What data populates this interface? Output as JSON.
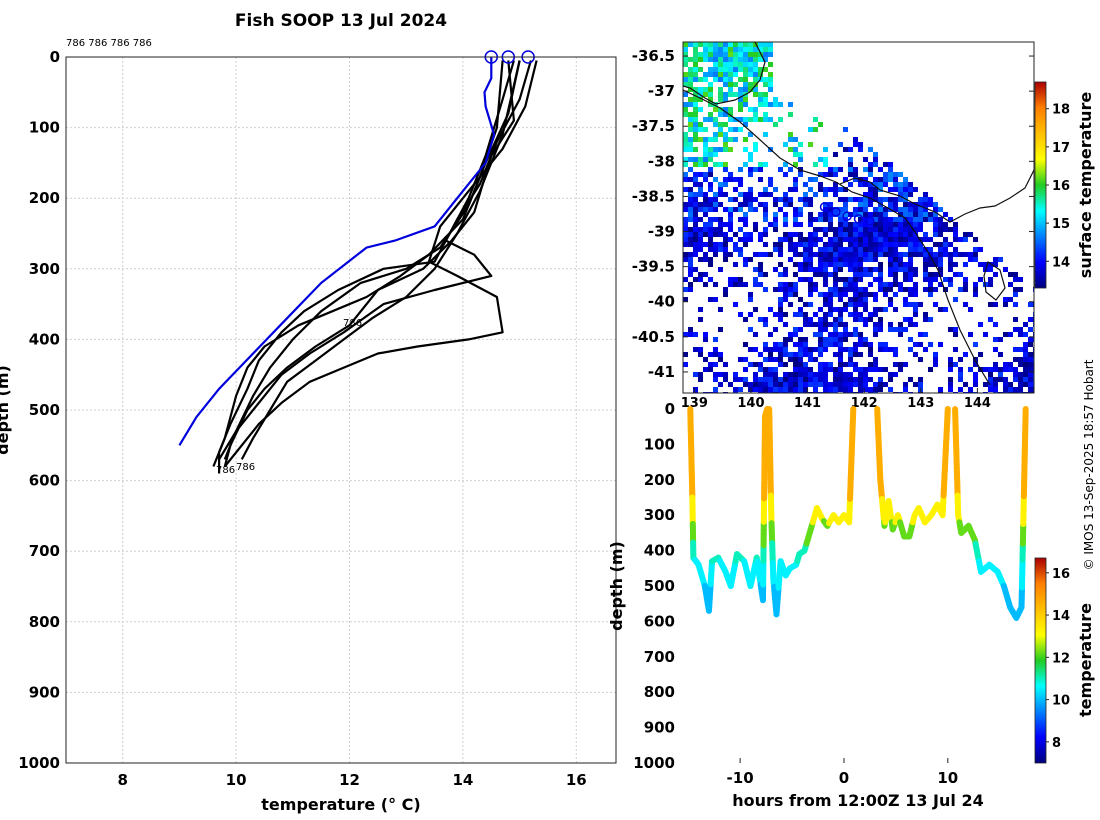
{
  "figure": {
    "title": "Fish SOOP 13 Jul 2024",
    "credit": "© IMOS 13-Sep-2025 18:57 Hobart"
  },
  "chart_data": [
    {
      "id": "profiles",
      "type": "line",
      "title": "Fish SOOP 13 Jul 2024",
      "xlabel": "temperature (° C)",
      "ylabel": "depth (m)",
      "xlim": [
        7,
        16.7
      ],
      "ylim": [
        0,
        1000
      ],
      "y_reversed": true,
      "xticks": [
        8,
        10,
        12,
        14,
        16
      ],
      "yticks": [
        0,
        100,
        200,
        300,
        400,
        500,
        600,
        700,
        800,
        900,
        1000
      ],
      "grid": true,
      "platform_labels": [
        "786 786 786 786",
        "786",
        "786",
        "786"
      ],
      "climatology": {
        "color": "#0000dd",
        "points": [
          [
            14.5,
            0
          ],
          [
            14.5,
            30
          ],
          [
            14.38,
            50
          ],
          [
            14.4,
            70
          ],
          [
            14.55,
            110
          ],
          [
            14.4,
            150
          ],
          [
            14.0,
            190
          ],
          [
            13.5,
            240
          ],
          [
            12.8,
            260
          ],
          [
            12.3,
            270
          ],
          [
            11.5,
            320
          ],
          [
            10.9,
            370
          ],
          [
            10.3,
            420
          ],
          [
            9.7,
            470
          ],
          [
            9.3,
            510
          ],
          [
            9.0,
            550
          ]
        ]
      },
      "surface_markers": [
        14.5,
        14.8,
        15.15
      ],
      "series": [
        {
          "name": "p1",
          "values": [
            [
              15.2,
              5
            ],
            [
              15.0,
              60
            ],
            [
              14.6,
              120
            ],
            [
              14.3,
              180
            ],
            [
              13.9,
              230
            ],
            [
              13.5,
              290
            ],
            [
              12.6,
              300
            ],
            [
              11.8,
              330
            ],
            [
              11.2,
              360
            ],
            [
              10.8,
              390
            ],
            [
              10.4,
              430
            ],
            [
              10.2,
              470
            ],
            [
              9.9,
              520
            ],
            [
              9.7,
              560
            ],
            [
              9.7,
              590
            ]
          ]
        },
        {
          "name": "p2",
          "values": [
            [
              15.0,
              5
            ],
            [
              14.8,
              80
            ],
            [
              14.4,
              150
            ],
            [
              14.1,
              210
            ],
            [
              13.6,
              270
            ],
            [
              13.0,
              300
            ],
            [
              12.2,
              320
            ],
            [
              11.5,
              360
            ],
            [
              11.0,
              400
            ],
            [
              10.6,
              440
            ],
            [
              10.3,
              480
            ],
            [
              10.0,
              530
            ],
            [
              9.8,
              570
            ]
          ]
        },
        {
          "name": "p3",
          "values": [
            [
              14.8,
              5
            ],
            [
              14.9,
              90
            ],
            [
              14.5,
              140
            ],
            [
              14.2,
              220
            ],
            [
              13.8,
              260
            ],
            [
              13.3,
              300
            ],
            [
              12.5,
              330
            ],
            [
              12.0,
              380
            ],
            [
              11.4,
              410
            ],
            [
              10.9,
              440
            ],
            [
              10.5,
              470
            ],
            [
              10.2,
              500
            ],
            [
              9.9,
              550
            ],
            [
              9.8,
              580
            ]
          ]
        },
        {
          "name": "p4",
          "values": [
            [
              15.3,
              5
            ],
            [
              15.1,
              70
            ],
            [
              14.7,
              130
            ],
            [
              14.0,
              200
            ],
            [
              13.6,
              240
            ],
            [
              13.4,
              290
            ],
            [
              13.9,
              310
            ],
            [
              14.6,
              340
            ],
            [
              14.7,
              390
            ],
            [
              14.1,
              400
            ],
            [
              13.2,
              410
            ],
            [
              12.5,
              420
            ],
            [
              11.9,
              440
            ],
            [
              11.3,
              460
            ],
            [
              10.8,
              490
            ],
            [
              10.4,
              520
            ],
            [
              10.1,
              550
            ],
            [
              9.8,
              580
            ]
          ]
        },
        {
          "name": "p5",
          "values": [
            [
              14.7,
              5
            ],
            [
              14.6,
              100
            ],
            [
              14.3,
              170
            ],
            [
              14.0,
              230
            ],
            [
              13.4,
              280
            ],
            [
              12.9,
              310
            ],
            [
              12.3,
              340
            ],
            [
              11.7,
              360
            ],
            [
              11.1,
              380
            ],
            [
              10.5,
              410
            ],
            [
              10.2,
              440
            ],
            [
              10.0,
              480
            ],
            [
              9.8,
              540
            ],
            [
              9.6,
              580
            ]
          ]
        },
        {
          "name": "p6",
          "values": [
            [
              15.0,
              5
            ],
            [
              14.7,
              110
            ],
            [
              14.3,
              190
            ],
            [
              13.9,
              250
            ],
            [
              13.5,
              300
            ],
            [
              13.0,
              340
            ],
            [
              12.4,
              370
            ],
            [
              11.9,
              400
            ],
            [
              11.4,
              430
            ],
            [
              10.9,
              460
            ],
            [
              10.6,
              500
            ],
            [
              10.3,
              540
            ],
            [
              10.1,
              570
            ]
          ]
        },
        {
          "name": "p7",
          "values": [
            [
              14.9,
              5
            ],
            [
              14.7,
              60
            ],
            [
              14.4,
              140
            ],
            [
              14.1,
              200
            ],
            [
              13.7,
              260
            ],
            [
              14.2,
              280
            ],
            [
              14.5,
              310
            ],
            [
              13.5,
              330
            ],
            [
              12.6,
              350
            ],
            [
              11.9,
              390
            ],
            [
              11.3,
              420
            ],
            [
              10.8,
              450
            ],
            [
              10.4,
              490
            ],
            [
              10.0,
              530
            ],
            [
              9.7,
              570
            ]
          ]
        }
      ]
    },
    {
      "id": "map",
      "type": "heatmap",
      "xlabel": "",
      "ylabel": "",
      "xlim": [
        138.8,
        145.0
      ],
      "ylim": [
        -41.3,
        -36.3
      ],
      "xticks": [
        139,
        140,
        141,
        142,
        143,
        144
      ],
      "yticks": [
        -36.5,
        -37,
        -37.5,
        -38,
        -38.5,
        -39,
        -39.5,
        -40,
        -40.5,
        -41
      ],
      "colorbar_label": "surface temperature",
      "colorbar_range": [
        13.3,
        18.7
      ],
      "colorbar_ticks": [
        14,
        15,
        16,
        17,
        18
      ],
      "track_color": "#0000dd",
      "track_points": [
        [
          141.3,
          -38.65
        ],
        [
          141.5,
          -38.72
        ],
        [
          141.7,
          -38.78
        ],
        [
          141.9,
          -38.82
        ],
        [
          142.1,
          -38.85
        ]
      ]
    },
    {
      "id": "section",
      "type": "scatter",
      "xlabel": "hours from 12:00Z 13 Jul 24",
      "ylabel": "depth (m)",
      "xlim": [
        -15.5,
        18.3
      ],
      "ylim": [
        0,
        1000
      ],
      "y_reversed": true,
      "xticks": [
        -10,
        0,
        10
      ],
      "yticks": [
        0,
        100,
        200,
        300,
        400,
        500,
        600,
        700,
        800,
        900,
        1000
      ],
      "colorbar_label": "temperature",
      "colorbar_range": [
        7,
        16.7
      ],
      "colorbar_ticks": [
        8,
        10,
        12,
        14,
        16
      ],
      "segments": [
        [
          [
            -14.8,
            0
          ],
          [
            -14.6,
            250
          ],
          [
            -14.5,
            420
          ],
          [
            -14,
            440
          ],
          [
            -13.4,
            500
          ],
          [
            -13,
            570
          ],
          [
            -12.7,
            430
          ],
          [
            -12.1,
            420
          ],
          [
            -11.4,
            460
          ],
          [
            -10.9,
            500
          ],
          [
            -10.3,
            410
          ],
          [
            -9.6,
            430
          ],
          [
            -9.0,
            500
          ],
          [
            -8.4,
            420
          ],
          [
            -7.8,
            540
          ],
          [
            -7.6,
            20
          ],
          [
            -7.4,
            0
          ]
        ],
        [
          [
            -7.2,
            0
          ],
          [
            -7.0,
            300
          ],
          [
            -6.8,
            480
          ],
          [
            -6.5,
            580
          ],
          [
            -6.1,
            430
          ],
          [
            -5.6,
            470
          ],
          [
            -5.2,
            450
          ],
          [
            -4.6,
            440
          ],
          [
            -4.3,
            410
          ],
          [
            -3.8,
            400
          ],
          [
            -3.2,
            340
          ],
          [
            -2.6,
            280
          ],
          [
            -2.1,
            310
          ],
          [
            -1.6,
            330
          ],
          [
            -1.0,
            300
          ],
          [
            -0.5,
            320
          ],
          [
            0,
            300
          ],
          [
            0.5,
            320
          ],
          [
            0.9,
            0
          ]
        ],
        [
          [
            3.2,
            0
          ],
          [
            3.5,
            200
          ],
          [
            3.9,
            330
          ],
          [
            4.3,
            260
          ],
          [
            4.7,
            340
          ],
          [
            5.2,
            300
          ],
          [
            5.8,
            360
          ],
          [
            6.3,
            360
          ],
          [
            6.8,
            300
          ],
          [
            7.2,
            280
          ],
          [
            7.8,
            320
          ],
          [
            8.4,
            300
          ],
          [
            9.0,
            270
          ],
          [
            9.5,
            300
          ],
          [
            10.0,
            0
          ]
        ],
        [
          [
            10.7,
            0
          ],
          [
            11.0,
            300
          ],
          [
            11.3,
            350
          ],
          [
            12.0,
            330
          ],
          [
            12.6,
            370
          ],
          [
            13.2,
            460
          ],
          [
            14.0,
            440
          ],
          [
            14.8,
            460
          ],
          [
            15.4,
            500
          ],
          [
            16.0,
            560
          ],
          [
            16.6,
            590
          ],
          [
            17.1,
            560
          ],
          [
            17.5,
            0
          ]
        ]
      ]
    }
  ]
}
